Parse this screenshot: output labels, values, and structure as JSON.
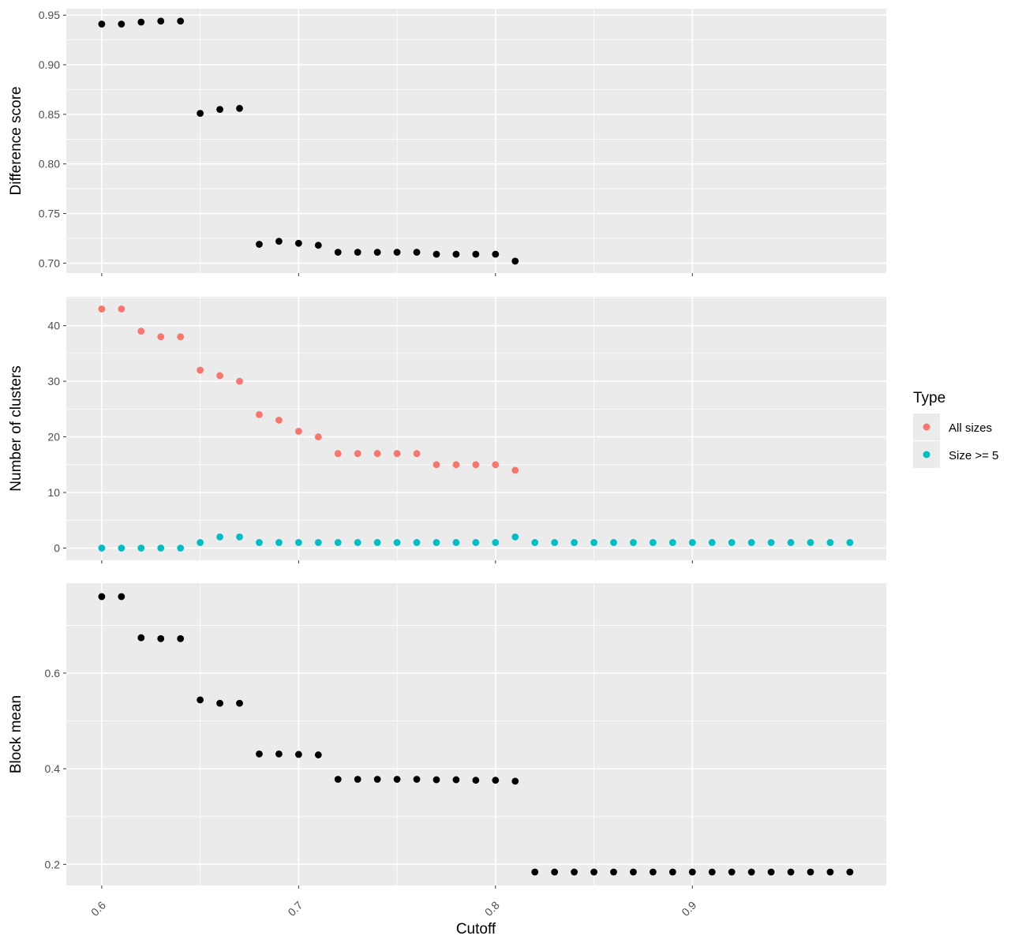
{
  "chart_data": {
    "type": "scatter",
    "shared_x": {
      "label": "Cutoff",
      "range": [
        0.582,
        0.9985
      ],
      "ticks": [
        0.6,
        0.7,
        0.8,
        0.9
      ],
      "tick_labels": [
        "0.6",
        "0.7",
        "0.8",
        "0.9"
      ]
    },
    "panels": [
      {
        "ylabel": "Difference score",
        "ylim": [
          0.69,
          0.9565
        ],
        "yticks": [
          0.7,
          0.75,
          0.8,
          0.85,
          0.9,
          0.95
        ],
        "ytick_labels": [
          "0.70",
          "0.75",
          "0.80",
          "0.85",
          "0.90",
          "0.95"
        ],
        "series": [
          {
            "color": "#000000",
            "points": [
              [
                0.6,
                0.941
              ],
              [
                0.61,
                0.941
              ],
              [
                0.62,
                0.943
              ],
              [
                0.63,
                0.944
              ],
              [
                0.64,
                0.944
              ],
              [
                0.65,
                0.851
              ],
              [
                0.66,
                0.855
              ],
              [
                0.67,
                0.856
              ],
              [
                0.68,
                0.719
              ],
              [
                0.69,
                0.722
              ],
              [
                0.7,
                0.72
              ],
              [
                0.71,
                0.718
              ],
              [
                0.72,
                0.711
              ],
              [
                0.73,
                0.711
              ],
              [
                0.74,
                0.711
              ],
              [
                0.75,
                0.711
              ],
              [
                0.76,
                0.711
              ],
              [
                0.77,
                0.709
              ],
              [
                0.78,
                0.709
              ],
              [
                0.79,
                0.709
              ],
              [
                0.8,
                0.709
              ],
              [
                0.81,
                0.702
              ]
            ]
          }
        ]
      },
      {
        "ylabel": "Number of clusters",
        "ylim": [
          -2.2,
          45.2
        ],
        "yticks": [
          0,
          10,
          20,
          30,
          40
        ],
        "ytick_labels": [
          "0",
          "10",
          "20",
          "30",
          "40"
        ],
        "series": [
          {
            "name": "All sizes",
            "color": "#F8766D",
            "points": [
              [
                0.6,
                43
              ],
              [
                0.61,
                43
              ],
              [
                0.62,
                39
              ],
              [
                0.63,
                38
              ],
              [
                0.64,
                38
              ],
              [
                0.65,
                32
              ],
              [
                0.66,
                31
              ],
              [
                0.67,
                30
              ],
              [
                0.68,
                24
              ],
              [
                0.69,
                23
              ],
              [
                0.7,
                21
              ],
              [
                0.71,
                20
              ],
              [
                0.72,
                17
              ],
              [
                0.73,
                17
              ],
              [
                0.74,
                17
              ],
              [
                0.75,
                17
              ],
              [
                0.76,
                17
              ],
              [
                0.77,
                15
              ],
              [
                0.78,
                15
              ],
              [
                0.79,
                15
              ],
              [
                0.8,
                15
              ],
              [
                0.81,
                14
              ]
            ]
          },
          {
            "name": "Size >= 5",
            "color": "#00BFC4",
            "points": [
              [
                0.6,
                0
              ],
              [
                0.61,
                0
              ],
              [
                0.62,
                0
              ],
              [
                0.63,
                0
              ],
              [
                0.64,
                0
              ],
              [
                0.65,
                1
              ],
              [
                0.66,
                2
              ],
              [
                0.67,
                2
              ],
              [
                0.68,
                1
              ],
              [
                0.69,
                1
              ],
              [
                0.7,
                1
              ],
              [
                0.71,
                1
              ],
              [
                0.72,
                1
              ],
              [
                0.73,
                1
              ],
              [
                0.74,
                1
              ],
              [
                0.75,
                1
              ],
              [
                0.76,
                1
              ],
              [
                0.77,
                1
              ],
              [
                0.78,
                1
              ],
              [
                0.79,
                1
              ],
              [
                0.8,
                1
              ],
              [
                0.81,
                2
              ],
              [
                0.82,
                1
              ],
              [
                0.83,
                1
              ],
              [
                0.84,
                1
              ],
              [
                0.85,
                1
              ],
              [
                0.86,
                1
              ],
              [
                0.87,
                1
              ],
              [
                0.88,
                1
              ],
              [
                0.89,
                1
              ],
              [
                0.9,
                1
              ],
              [
                0.91,
                1
              ],
              [
                0.92,
                1
              ],
              [
                0.93,
                1
              ],
              [
                0.94,
                1
              ],
              [
                0.95,
                1
              ],
              [
                0.96,
                1
              ],
              [
                0.97,
                1
              ],
              [
                0.98,
                1
              ]
            ]
          }
        ]
      },
      {
        "ylabel": "Block mean",
        "ylim": [
          0.156,
          0.788
        ],
        "yticks": [
          0.2,
          0.4,
          0.6
        ],
        "ytick_labels": [
          "0.2",
          "0.4",
          "0.6"
        ],
        "series": [
          {
            "color": "#000000",
            "points": [
              [
                0.6,
                0.76
              ],
              [
                0.61,
                0.76
              ],
              [
                0.62,
                0.674
              ],
              [
                0.63,
                0.672
              ],
              [
                0.64,
                0.672
              ],
              [
                0.65,
                0.544
              ],
              [
                0.66,
                0.537
              ],
              [
                0.67,
                0.537
              ],
              [
                0.68,
                0.431
              ],
              [
                0.69,
                0.431
              ],
              [
                0.7,
                0.43
              ],
              [
                0.71,
                0.429
              ],
              [
                0.72,
                0.378
              ],
              [
                0.73,
                0.378
              ],
              [
                0.74,
                0.378
              ],
              [
                0.75,
                0.378
              ],
              [
                0.76,
                0.378
              ],
              [
                0.77,
                0.377
              ],
              [
                0.78,
                0.377
              ],
              [
                0.79,
                0.376
              ],
              [
                0.8,
                0.376
              ],
              [
                0.81,
                0.374
              ],
              [
                0.82,
                0.184
              ],
              [
                0.83,
                0.184
              ],
              [
                0.84,
                0.184
              ],
              [
                0.85,
                0.184
              ],
              [
                0.86,
                0.184
              ],
              [
                0.87,
                0.184
              ],
              [
                0.88,
                0.184
              ],
              [
                0.89,
                0.184
              ],
              [
                0.9,
                0.184
              ],
              [
                0.91,
                0.184
              ],
              [
                0.92,
                0.184
              ],
              [
                0.93,
                0.184
              ],
              [
                0.94,
                0.184
              ],
              [
                0.95,
                0.184
              ],
              [
                0.96,
                0.184
              ],
              [
                0.97,
                0.184
              ],
              [
                0.98,
                0.184
              ]
            ]
          }
        ]
      }
    ],
    "legend": {
      "title": "Type",
      "placement": "right",
      "entries": [
        {
          "label": "All sizes",
          "color": "#F8766D"
        },
        {
          "label": "Size >= 5",
          "color": "#00BFC4"
        }
      ]
    },
    "grid": true,
    "panel_background": "#EBEBEB",
    "grid_color": "#FFFFFF"
  }
}
